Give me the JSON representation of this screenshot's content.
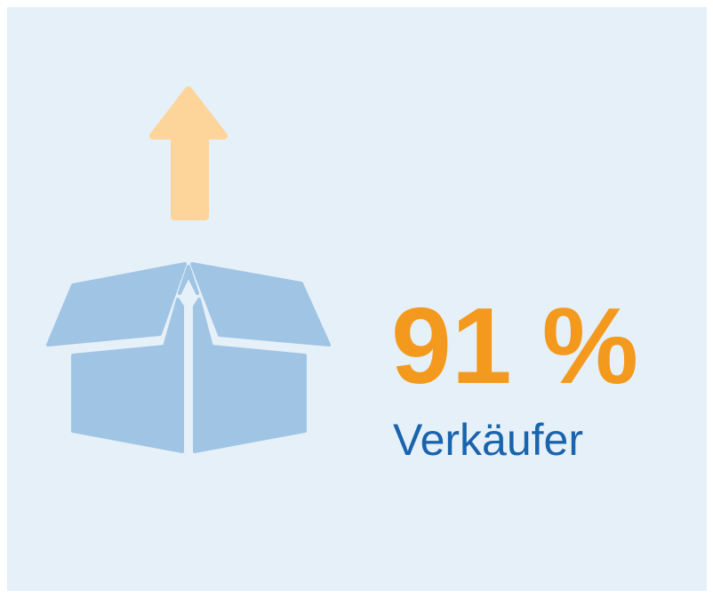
{
  "stat": {
    "value": "91 %",
    "label": "Verkäufer"
  }
}
